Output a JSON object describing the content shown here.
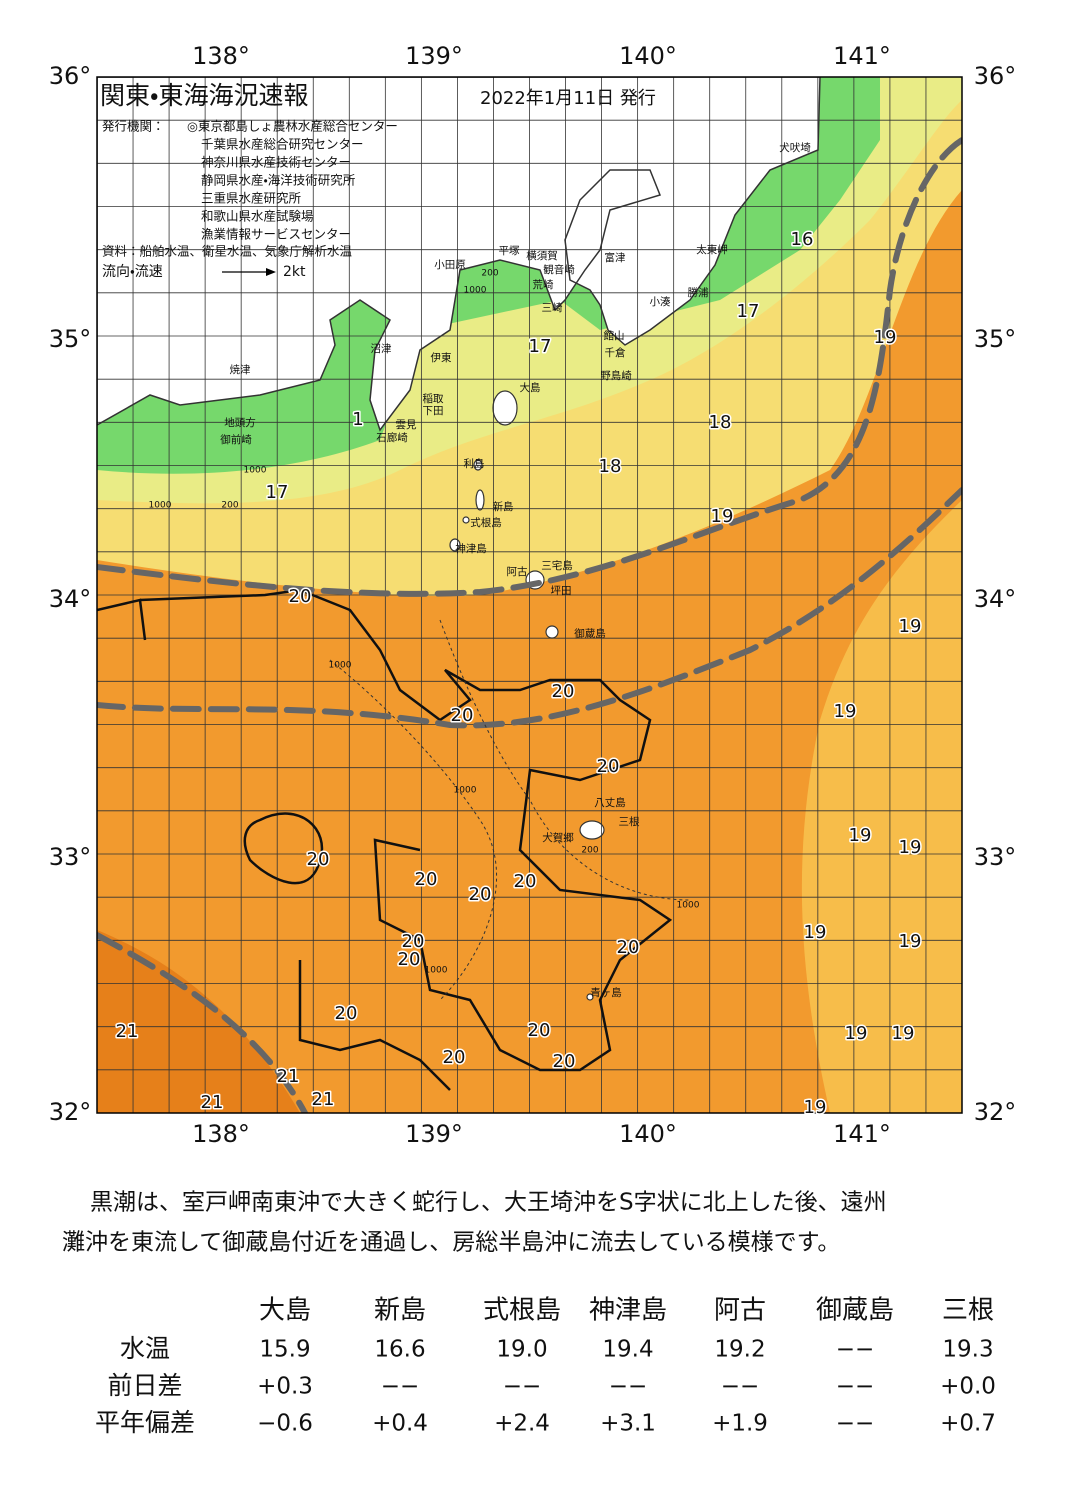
{
  "header": {
    "title": "関東・東海海況速報",
    "date": "2022年1月11日 発行",
    "issuer_label": "発行機関：",
    "issuers": [
      "◎東京都島しょ農林水産総合センター",
      "千葉県水産総合研究センター",
      "神奈川県水産技術センター",
      "静岡県水産・海洋技術研究所",
      "三重県水産研究所",
      "和歌山県水産試験場",
      "漁業情報サービスセンター"
    ],
    "source": "資料：船舶水温、衛星水温、気象庁解析水温",
    "flow_label": "流向・流速",
    "flow_scale": "2kt"
  },
  "map": {
    "lon_labels": [
      "138°",
      "139°",
      "140°",
      "141°"
    ],
    "lat_labels": [
      "36°",
      "35°",
      "34°",
      "33°",
      "32°"
    ],
    "contour_labels": [
      16,
      17,
      19,
      17,
      18,
      1,
      18,
      17,
      19,
      20,
      19,
      20,
      19,
      20,
      20,
      19,
      19,
      20,
      20,
      20,
      20,
      19,
      20,
      19,
      20,
      20,
      20,
      19,
      19,
      20,
      21,
      20,
      20,
      21,
      21,
      21,
      19
    ],
    "place_names": [
      "犬吠埼",
      "太東岬",
      "勝浦",
      "小湊",
      "富津",
      "館山",
      "千倉",
      "野島崎",
      "平塚",
      "横須賀",
      "観音崎",
      "荒崎",
      "三崎",
      "小田原",
      "沼津",
      "伊東",
      "稲取",
      "下田",
      "雲見",
      "石廊崎",
      "焼津",
      "地頭方",
      "御前崎",
      "大島",
      "利島",
      "新島",
      "式根島",
      "神津島",
      "三宅島",
      "阿古",
      "坪田",
      "御蔵島",
      "八丈島",
      "三根",
      "大賀郷",
      "青ヶ島"
    ],
    "depth_labels": [
      "200",
      "1000",
      "1000",
      "200",
      "1000",
      "1000",
      "1000",
      "200",
      "1000",
      "1000"
    ]
  },
  "summary": {
    "lines": [
      "黒潮は、室戸岬南東沖で大きく蛇行し、大王埼沖をS字状に北上した後、遠州",
      "灘沖を東流して御蔵島付近を通過し、房総半島沖に流去している模様です。"
    ]
  },
  "table": {
    "columns": [
      "大島",
      "新島",
      "式根島",
      "神津島",
      "阿古",
      "御蔵島",
      "三根"
    ],
    "rows": [
      {
        "label": "水温",
        "values": [
          "15.9",
          "16.6",
          "19.0",
          "19.4",
          "19.2",
          "−−",
          "19.3"
        ]
      },
      {
        "label": "前日差",
        "values": [
          "+0.3",
          "−−",
          "−−",
          "−−",
          "−−",
          "−−",
          "+0.0"
        ]
      },
      {
        "label": "平年偏差",
        "values": [
          "−0.6",
          "+0.4",
          "+2.4",
          "+3.1",
          "+1.9",
          "−−",
          "+0.7"
        ]
      }
    ]
  }
}
